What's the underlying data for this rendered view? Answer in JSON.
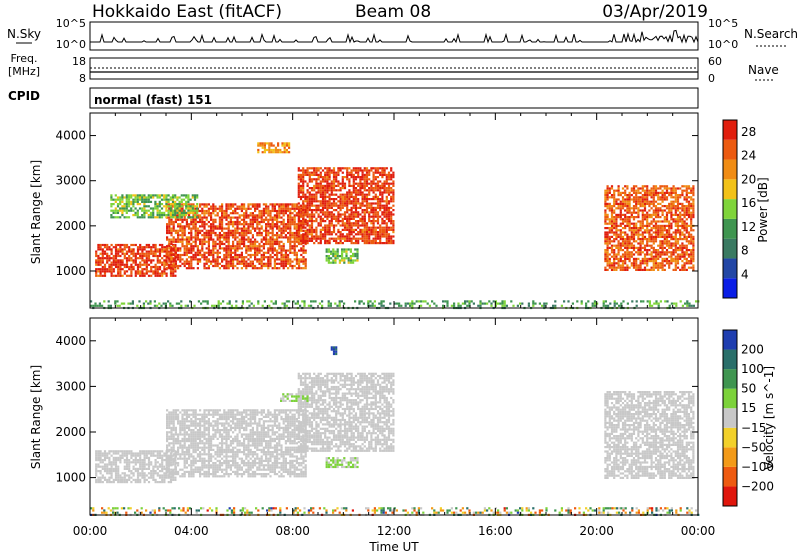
{
  "header": {
    "title": "Hokkaido East (fitACF)",
    "beam": "Beam 08",
    "date": "03/Apr/2019"
  },
  "param_panels": {
    "nsky": {
      "label": "N.Sky",
      "ticks": [
        "10^5",
        "10^0"
      ]
    },
    "nsearch": {
      "label": "N.Search",
      "ticks": [
        "10^5",
        "10^0"
      ]
    },
    "freq": {
      "label_top": "Freq.",
      "label_bottom": "[MHz]",
      "ticks": [
        "18",
        "8"
      ]
    },
    "nave": {
      "label": "Nave",
      "ticks": [
        "60",
        "0"
      ]
    },
    "cpid": {
      "label": "CPID",
      "value": "normal (fast) 151"
    }
  },
  "colors": {
    "power": [
      "#0a1ee6",
      "#2246a5",
      "#3a7a62",
      "#3f9550",
      "#7fd43a",
      "#f2c218",
      "#f08c14",
      "#ec5a10",
      "#e01e0e"
    ],
    "velocity": [
      "#e0160c",
      "#ee5a10",
      "#f39a18",
      "#f2d02a",
      "#c8c8c8",
      "#7cd23a",
      "#3f9550",
      "#2a6f6a",
      "#1f3eb0"
    ]
  },
  "chart_data": [
    {
      "type": "heatmap",
      "name": "power",
      "xlabel": "Time UT",
      "ylabel": "Slant Range [km]",
      "x_ticks": [
        "00:00",
        "04:00",
        "08:00",
        "12:00",
        "16:00",
        "20:00",
        "00:00"
      ],
      "xlim_hours": [
        0,
        24
      ],
      "y_ticks": [
        1000,
        2000,
        3000,
        4000
      ],
      "ylim": [
        180,
        4500
      ],
      "colorbar": {
        "label": "Power [dB]",
        "ticks": [
          4,
          8,
          12,
          16,
          20,
          24,
          28
        ],
        "range": [
          0,
          30
        ]
      },
      "regions": [
        {
          "t": [
            0.2,
            3.4
          ],
          "r": [
            900,
            1600
          ],
          "value": 27
        },
        {
          "t": [
            3.0,
            8.5
          ],
          "r": [
            1050,
            2500
          ],
          "value": 26
        },
        {
          "t": [
            8.2,
            12.0
          ],
          "r": [
            1600,
            3300
          ],
          "value": 27
        },
        {
          "t": [
            9.3,
            10.6
          ],
          "r": [
            1200,
            1500
          ],
          "value": 14
        },
        {
          "t": [
            0.8,
            4.2
          ],
          "r": [
            2200,
            2700
          ],
          "value": 14
        },
        {
          "t": [
            6.6,
            7.9
          ],
          "r": [
            3650,
            3850
          ],
          "value": 22
        },
        {
          "t": [
            20.3,
            23.8
          ],
          "r": [
            1000,
            2900
          ],
          "value": 25
        },
        {
          "t": [
            0.0,
            24.0
          ],
          "r": [
            200,
            350
          ],
          "value": 12
        }
      ]
    },
    {
      "type": "heatmap",
      "name": "velocity",
      "xlabel": "Time UT",
      "ylabel": "Slant Range [km]",
      "x_ticks": [
        "00:00",
        "04:00",
        "08:00",
        "12:00",
        "16:00",
        "20:00",
        "00:00"
      ],
      "xlim_hours": [
        0,
        24
      ],
      "y_ticks": [
        1000,
        2000,
        3000,
        4000
      ],
      "ylim": [
        180,
        4500
      ],
      "colorbar": {
        "label": "Velocity [m s^-1]",
        "ticks": [
          200,
          100,
          50,
          15,
          -15,
          -50,
          -100,
          -200
        ],
        "range": [
          -250,
          250
        ]
      },
      "regions": [
        {
          "t": [
            0.2,
            3.4
          ],
          "r": [
            900,
            1600
          ],
          "value": 0
        },
        {
          "t": [
            3.0,
            8.5
          ],
          "r": [
            1050,
            2500
          ],
          "value": 0
        },
        {
          "t": [
            8.2,
            12.0
          ],
          "r": [
            1600,
            3300
          ],
          "value": 0
        },
        {
          "t": [
            9.3,
            10.6
          ],
          "r": [
            1250,
            1450
          ],
          "value": 30
        },
        {
          "t": [
            7.5,
            8.6
          ],
          "r": [
            2700,
            2850
          ],
          "value": 30
        },
        {
          "t": [
            9.5,
            9.7
          ],
          "r": [
            3720,
            3880
          ],
          "value": 200
        },
        {
          "t": [
            20.3,
            23.8
          ],
          "r": [
            1000,
            2900
          ],
          "value": 0
        },
        {
          "t": [
            0.0,
            24.0
          ],
          "r": [
            200,
            350
          ],
          "value": -40
        }
      ]
    }
  ]
}
